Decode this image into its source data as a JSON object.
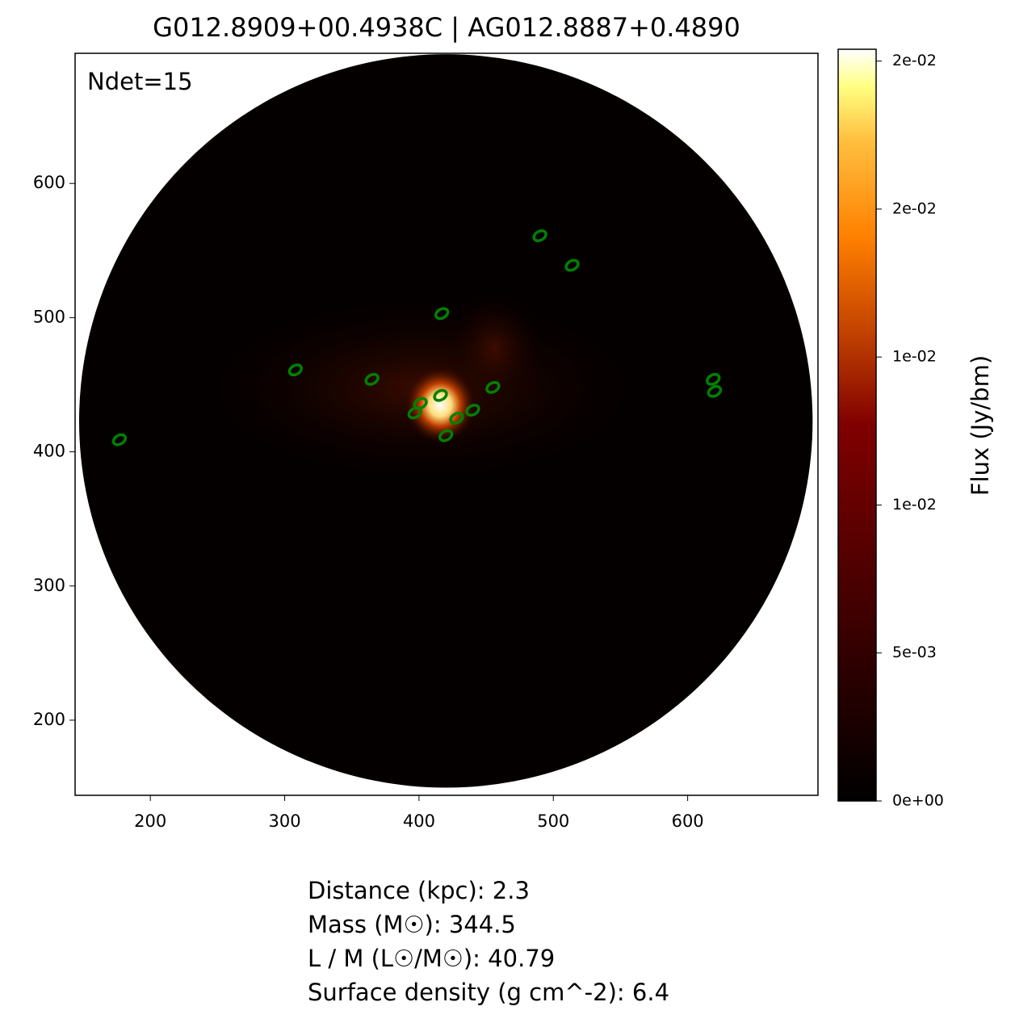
{
  "chart_data": {
    "type": "image",
    "title": "G012.8909+00.4938C | AG012.8887+0.4890",
    "annotation": "Ndet=15",
    "xlim": [
      144,
      697
    ],
    "ylim": [
      144,
      697
    ],
    "xticks": [
      200,
      300,
      400,
      500,
      600
    ],
    "yticks": [
      200,
      300,
      400,
      500,
      600
    ],
    "footprint": {
      "center": [
        420,
        423
      ],
      "radius": 273
    },
    "detections": {
      "color": "#008000",
      "x": [
        490,
        514,
        417,
        308,
        365,
        455,
        416,
        401,
        397,
        440,
        428,
        420,
        177,
        619,
        620
      ],
      "y": [
        561,
        539,
        503,
        461,
        454,
        448,
        442,
        436,
        429,
        431,
        425,
        412,
        409,
        454,
        445
      ]
    },
    "colorbar": {
      "label": "Flux (Jy/bm)",
      "clim": [
        0,
        0.0254
      ],
      "ticks": [
        {
          "value": 0,
          "label": "0e+00"
        },
        {
          "value": 0.005,
          "label": "5e-03"
        },
        {
          "value": 0.01,
          "label": "1e-02"
        },
        {
          "value": 0.015,
          "label": "1e-02"
        },
        {
          "value": 0.02,
          "label": "2e-02"
        },
        {
          "value": 0.025,
          "label": "2e-02"
        }
      ]
    },
    "info": [
      "Distance (kpc): 2.3",
      "Mass (M☉): 344.5",
      "L / M (L☉/M☉): 40.79",
      "Surface density (g cm^-2): 6.4"
    ]
  }
}
